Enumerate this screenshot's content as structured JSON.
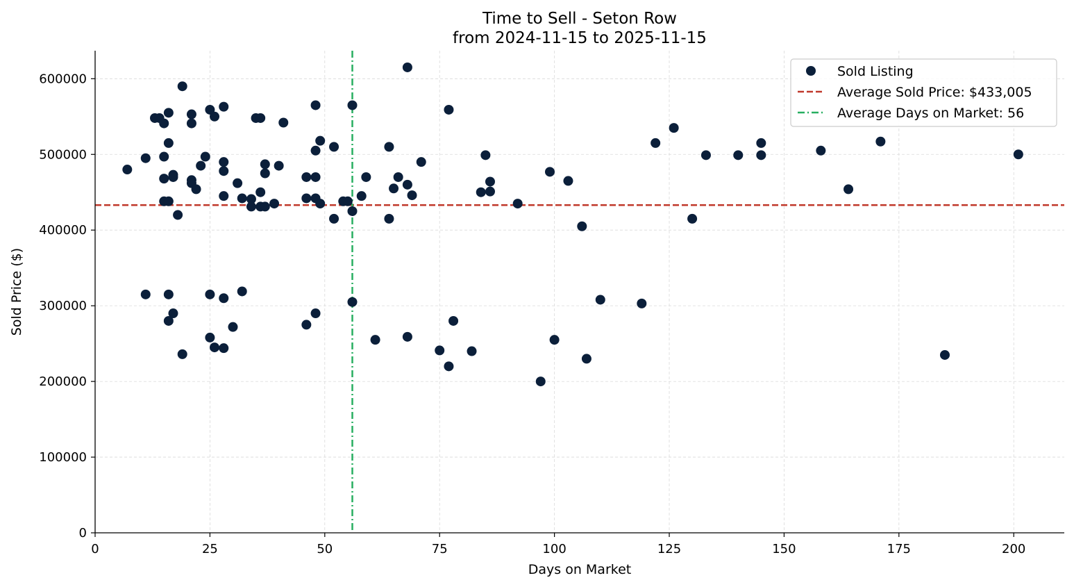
{
  "chart_data": {
    "type": "scatter",
    "title_lines": [
      "Time to Sell - Seton Row",
      "from 2024-11-15 to 2025-11-15"
    ],
    "xlabel": "Days on Market",
    "ylabel": "Sold Price ($)",
    "xlim": [
      0,
      211
    ],
    "ylim": [
      0,
      637000
    ],
    "xticks": [
      0,
      25,
      50,
      75,
      100,
      125,
      150,
      175,
      200
    ],
    "yticks": [
      0,
      100000,
      200000,
      300000,
      400000,
      500000,
      600000
    ],
    "grid": true,
    "legend_position": "top-right",
    "colors": {
      "points": "#0b1f3a",
      "avg_price_line": "#c0392b",
      "avg_days_line": "#27ae60",
      "grid": "#d9d9d9",
      "axis": "#000000"
    },
    "average_price": 433005,
    "average_days": 56,
    "legend": {
      "sold": "Sold Listing",
      "avg_price": "Average Sold Price: $433,005",
      "avg_days": "Average Days on Market: 56"
    },
    "points": [
      [
        7,
        480000
      ],
      [
        11,
        495000
      ],
      [
        11,
        315000
      ],
      [
        13,
        548000
      ],
      [
        14,
        548000
      ],
      [
        15,
        541000
      ],
      [
        15,
        497000
      ],
      [
        15,
        468000
      ],
      [
        15,
        438000
      ],
      [
        16,
        555000
      ],
      [
        16,
        515000
      ],
      [
        16,
        438000
      ],
      [
        16,
        315000
      ],
      [
        16,
        280000
      ],
      [
        17,
        473000
      ],
      [
        17,
        470000
      ],
      [
        17,
        290000
      ],
      [
        18,
        420000
      ],
      [
        19,
        590000
      ],
      [
        19,
        236000
      ],
      [
        21,
        553000
      ],
      [
        21,
        541000
      ],
      [
        21,
        466000
      ],
      [
        21,
        462000
      ],
      [
        22,
        454000
      ],
      [
        23,
        485000
      ],
      [
        24,
        497000
      ],
      [
        25,
        559000
      ],
      [
        25,
        315000
      ],
      [
        25,
        258000
      ],
      [
        26,
        550000
      ],
      [
        26,
        245000
      ],
      [
        28,
        563000
      ],
      [
        28,
        490000
      ],
      [
        28,
        478000
      ],
      [
        28,
        445000
      ],
      [
        28,
        310000
      ],
      [
        28,
        244000
      ],
      [
        30,
        272000
      ],
      [
        31,
        462000
      ],
      [
        32,
        442000
      ],
      [
        32,
        319000
      ],
      [
        34,
        441000
      ],
      [
        34,
        431000
      ],
      [
        35,
        548000
      ],
      [
        36,
        548000
      ],
      [
        36,
        450000
      ],
      [
        36,
        431000
      ],
      [
        37,
        487000
      ],
      [
        37,
        475000
      ],
      [
        37,
        431000
      ],
      [
        39,
        435000
      ],
      [
        40,
        485000
      ],
      [
        41,
        542000
      ],
      [
        46,
        470000
      ],
      [
        46,
        442000
      ],
      [
        46,
        275000
      ],
      [
        48,
        565000
      ],
      [
        48,
        505000
      ],
      [
        48,
        470000
      ],
      [
        48,
        442000
      ],
      [
        48,
        290000
      ],
      [
        49,
        518000
      ],
      [
        49,
        435000
      ],
      [
        52,
        510000
      ],
      [
        52,
        415000
      ],
      [
        54,
        438000
      ],
      [
        55,
        438000
      ],
      [
        56,
        565000
      ],
      [
        56,
        425000
      ],
      [
        56,
        305000
      ],
      [
        58,
        445000
      ],
      [
        59,
        470000
      ],
      [
        61,
        255000
      ],
      [
        64,
        510000
      ],
      [
        64,
        415000
      ],
      [
        65,
        455000
      ],
      [
        66,
        470000
      ],
      [
        68,
        615000
      ],
      [
        68,
        460000
      ],
      [
        68,
        259000
      ],
      [
        69,
        446000
      ],
      [
        71,
        490000
      ],
      [
        75,
        241000
      ],
      [
        77,
        559000
      ],
      [
        77,
        220000
      ],
      [
        78,
        280000
      ],
      [
        82,
        240000
      ],
      [
        84,
        450000
      ],
      [
        85,
        499000
      ],
      [
        86,
        464000
      ],
      [
        86,
        451000
      ],
      [
        92,
        435000
      ],
      [
        97,
        200000
      ],
      [
        99,
        477000
      ],
      [
        100,
        255000
      ],
      [
        103,
        465000
      ],
      [
        106,
        405000
      ],
      [
        107,
        230000
      ],
      [
        110,
        308000
      ],
      [
        119,
        303000
      ],
      [
        122,
        515000
      ],
      [
        126,
        535000
      ],
      [
        130,
        415000
      ],
      [
        133,
        499000
      ],
      [
        140,
        499000
      ],
      [
        145,
        515000
      ],
      [
        145,
        499000
      ],
      [
        158,
        505000
      ],
      [
        164,
        454000
      ],
      [
        171,
        517000
      ],
      [
        185,
        235000
      ],
      [
        201,
        500000
      ]
    ]
  }
}
